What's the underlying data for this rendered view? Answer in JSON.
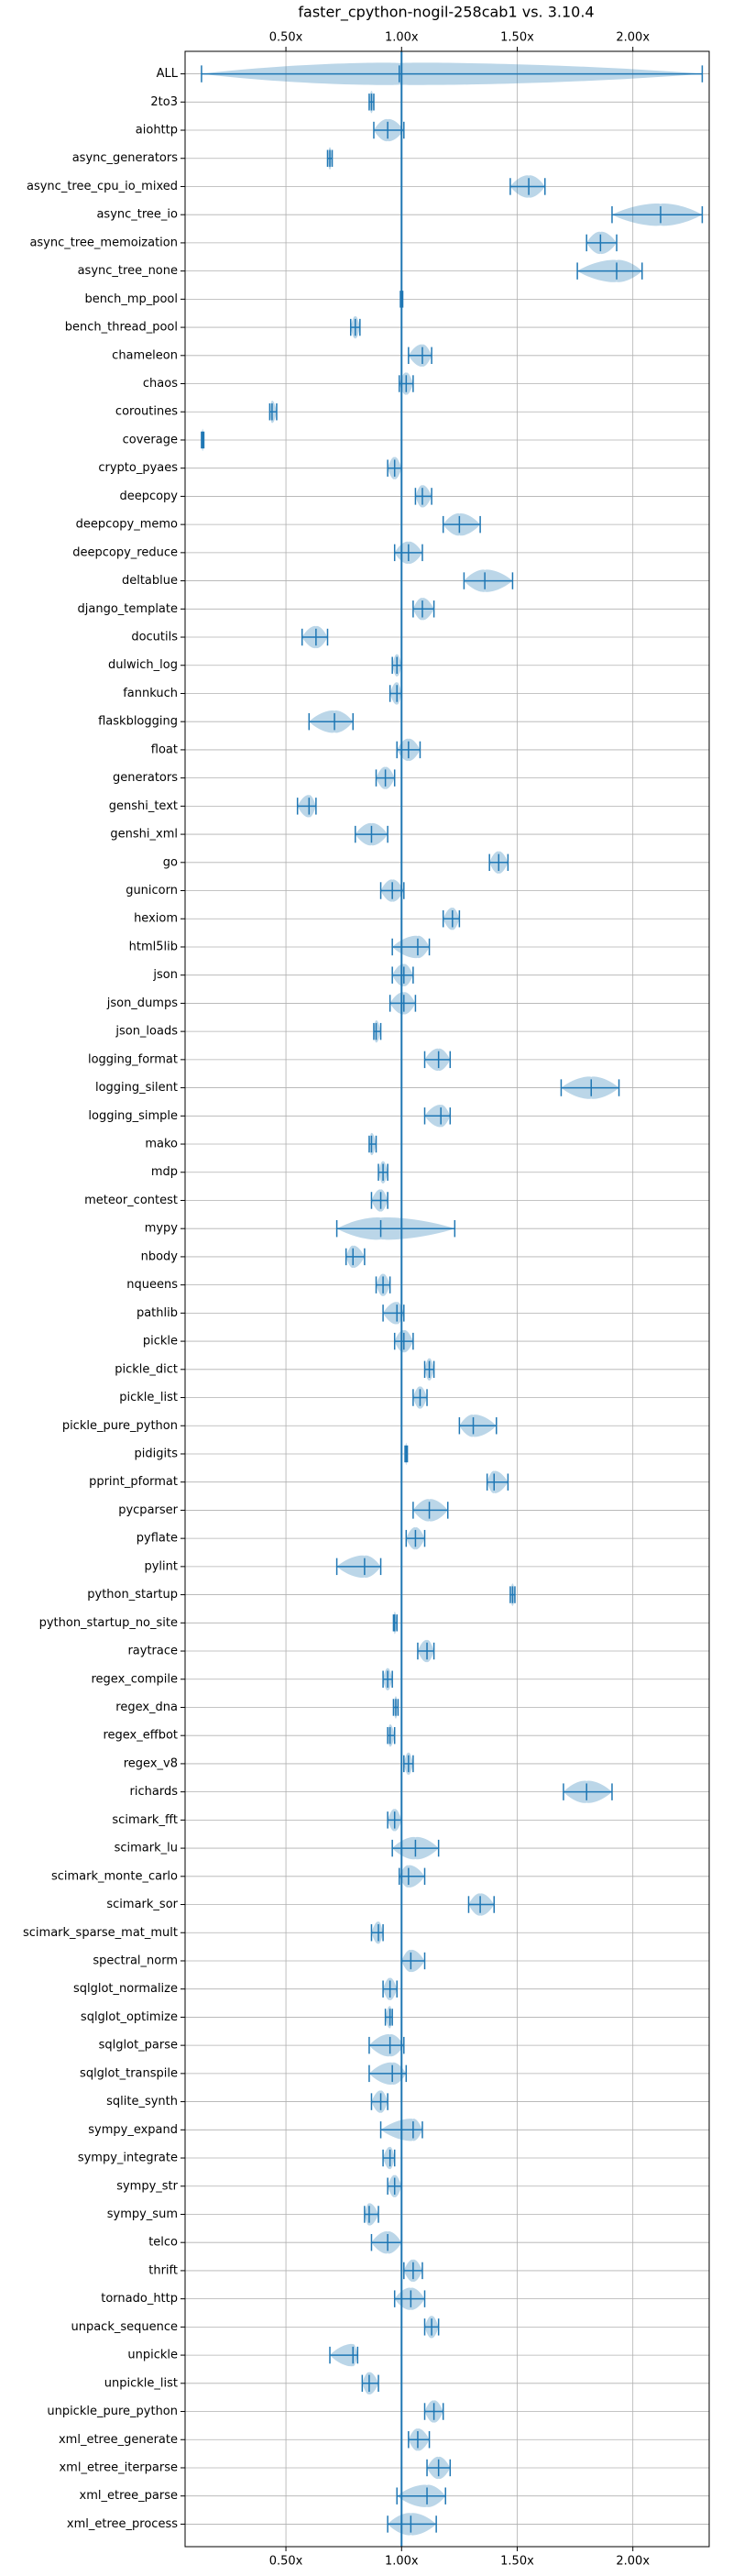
{
  "chart_data": {
    "type": "violin",
    "title": "faster_cpython-nogil-258cab1 vs. 3.10.4",
    "categories": [
      "ALL",
      "2to3",
      "aiohttp",
      "async_generators",
      "async_tree_cpu_io_mixed",
      "async_tree_io",
      "async_tree_memoization",
      "async_tree_none",
      "bench_mp_pool",
      "bench_thread_pool",
      "chameleon",
      "chaos",
      "coroutines",
      "coverage",
      "crypto_pyaes",
      "deepcopy",
      "deepcopy_memo",
      "deepcopy_reduce",
      "deltablue",
      "django_template",
      "docutils",
      "dulwich_log",
      "fannkuch",
      "flaskblogging",
      "float",
      "generators",
      "genshi_text",
      "genshi_xml",
      "go",
      "gunicorn",
      "hexiom",
      "html5lib",
      "json",
      "json_dumps",
      "json_loads",
      "logging_format",
      "logging_silent",
      "logging_simple",
      "mako",
      "mdp",
      "meteor_contest",
      "mypy",
      "nbody",
      "nqueens",
      "pathlib",
      "pickle",
      "pickle_dict",
      "pickle_list",
      "pickle_pure_python",
      "pidigits",
      "pprint_pformat",
      "pycparser",
      "pyflate",
      "pylint",
      "python_startup",
      "python_startup_no_site",
      "raytrace",
      "regex_compile",
      "regex_dna",
      "regex_effbot",
      "regex_v8",
      "richards",
      "scimark_fft",
      "scimark_lu",
      "scimark_monte_carlo",
      "scimark_sor",
      "scimark_sparse_mat_mult",
      "spectral_norm",
      "sqlglot_normalize",
      "sqlglot_optimize",
      "sqlglot_parse",
      "sqlglot_transpile",
      "sqlite_synth",
      "sympy_expand",
      "sympy_integrate",
      "sympy_str",
      "sympy_sum",
      "telco",
      "thrift",
      "tornado_http",
      "unpack_sequence",
      "unpickle",
      "unpickle_list",
      "unpickle_pure_python",
      "xml_etree_generate",
      "xml_etree_iterparse",
      "xml_etree_parse",
      "xml_etree_process"
    ],
    "min": [
      0.135,
      0.86,
      0.88,
      0.68,
      1.47,
      1.91,
      1.8,
      1.76,
      0.995,
      0.78,
      1.03,
      0.99,
      0.43,
      0.135,
      0.94,
      1.06,
      1.18,
      0.97,
      1.27,
      1.05,
      0.57,
      0.96,
      0.95,
      0.6,
      0.98,
      0.89,
      0.55,
      0.8,
      1.38,
      0.91,
      1.18,
      0.96,
      0.96,
      0.95,
      0.88,
      1.1,
      1.69,
      1.1,
      0.86,
      0.9,
      0.87,
      0.72,
      0.76,
      0.89,
      0.92,
      0.97,
      1.1,
      1.05,
      1.25,
      1.015,
      1.37,
      1.05,
      1.02,
      0.72,
      1.47,
      0.965,
      1.07,
      0.92,
      0.965,
      0.94,
      1.01,
      1.7,
      0.94,
      0.96,
      0.99,
      1.29,
      0.87,
      1.0,
      0.92,
      0.93,
      0.86,
      0.86,
      0.87,
      0.91,
      0.92,
      0.94,
      0.84,
      0.87,
      1.01,
      0.97,
      1.1,
      0.69,
      0.83,
      1.1,
      1.03,
      1.11,
      0.98,
      0.94
    ],
    "median": [
      0.99,
      0.87,
      0.94,
      0.69,
      1.55,
      2.12,
      1.86,
      1.93,
      1.0,
      0.8,
      1.09,
      1.02,
      0.44,
      0.14,
      0.97,
      1.09,
      1.25,
      1.03,
      1.36,
      1.09,
      0.63,
      0.98,
      0.98,
      0.71,
      1.03,
      0.93,
      0.6,
      0.87,
      1.42,
      0.96,
      1.22,
      1.07,
      1.01,
      1.01,
      0.89,
      1.16,
      1.82,
      1.17,
      0.87,
      0.92,
      0.91,
      0.91,
      0.79,
      0.92,
      0.98,
      1.01,
      1.12,
      1.08,
      1.31,
      1.02,
      1.4,
      1.12,
      1.06,
      0.84,
      1.48,
      0.97,
      1.11,
      0.94,
      0.975,
      0.95,
      1.03,
      1.8,
      0.97,
      1.06,
      1.03,
      1.34,
      0.9,
      1.04,
      0.95,
      0.95,
      0.95,
      0.96,
      0.91,
      1.05,
      0.95,
      0.97,
      0.86,
      0.94,
      1.05,
      1.04,
      1.13,
      0.79,
      0.86,
      1.14,
      1.07,
      1.16,
      1.11,
      1.04
    ],
    "max": [
      2.3,
      0.88,
      1.01,
      0.7,
      1.62,
      2.3,
      1.93,
      2.04,
      1.005,
      0.82,
      1.13,
      1.05,
      0.46,
      0.145,
      1.0,
      1.13,
      1.34,
      1.09,
      1.48,
      1.14,
      0.68,
      1.0,
      1.0,
      0.79,
      1.08,
      0.97,
      0.63,
      0.94,
      1.46,
      1.01,
      1.25,
      1.12,
      1.05,
      1.06,
      0.91,
      1.21,
      1.94,
      1.21,
      0.89,
      0.94,
      0.94,
      1.23,
      0.84,
      0.95,
      1.01,
      1.05,
      1.14,
      1.11,
      1.41,
      1.025,
      1.46,
      1.2,
      1.1,
      0.91,
      1.49,
      0.98,
      1.14,
      0.96,
      0.985,
      0.97,
      1.05,
      1.91,
      1.0,
      1.16,
      1.1,
      1.4,
      0.92,
      1.1,
      0.98,
      0.96,
      1.01,
      1.02,
      0.94,
      1.09,
      0.97,
      1.0,
      0.9,
      1.0,
      1.09,
      1.1,
      1.16,
      0.81,
      0.9,
      1.18,
      1.12,
      1.21,
      1.19,
      1.15
    ],
    "color": "#1f77b4",
    "reference_line": 1,
    "xlim": [
      0.064,
      2.33
    ],
    "xticks": [
      {
        "value": 0.5,
        "label": "0.50x"
      },
      {
        "value": 1,
        "label": "1.00x"
      },
      {
        "value": 1.5,
        "label": "1.50x"
      },
      {
        "value": 2,
        "label": "2.00x"
      }
    ],
    "grid": true
  }
}
